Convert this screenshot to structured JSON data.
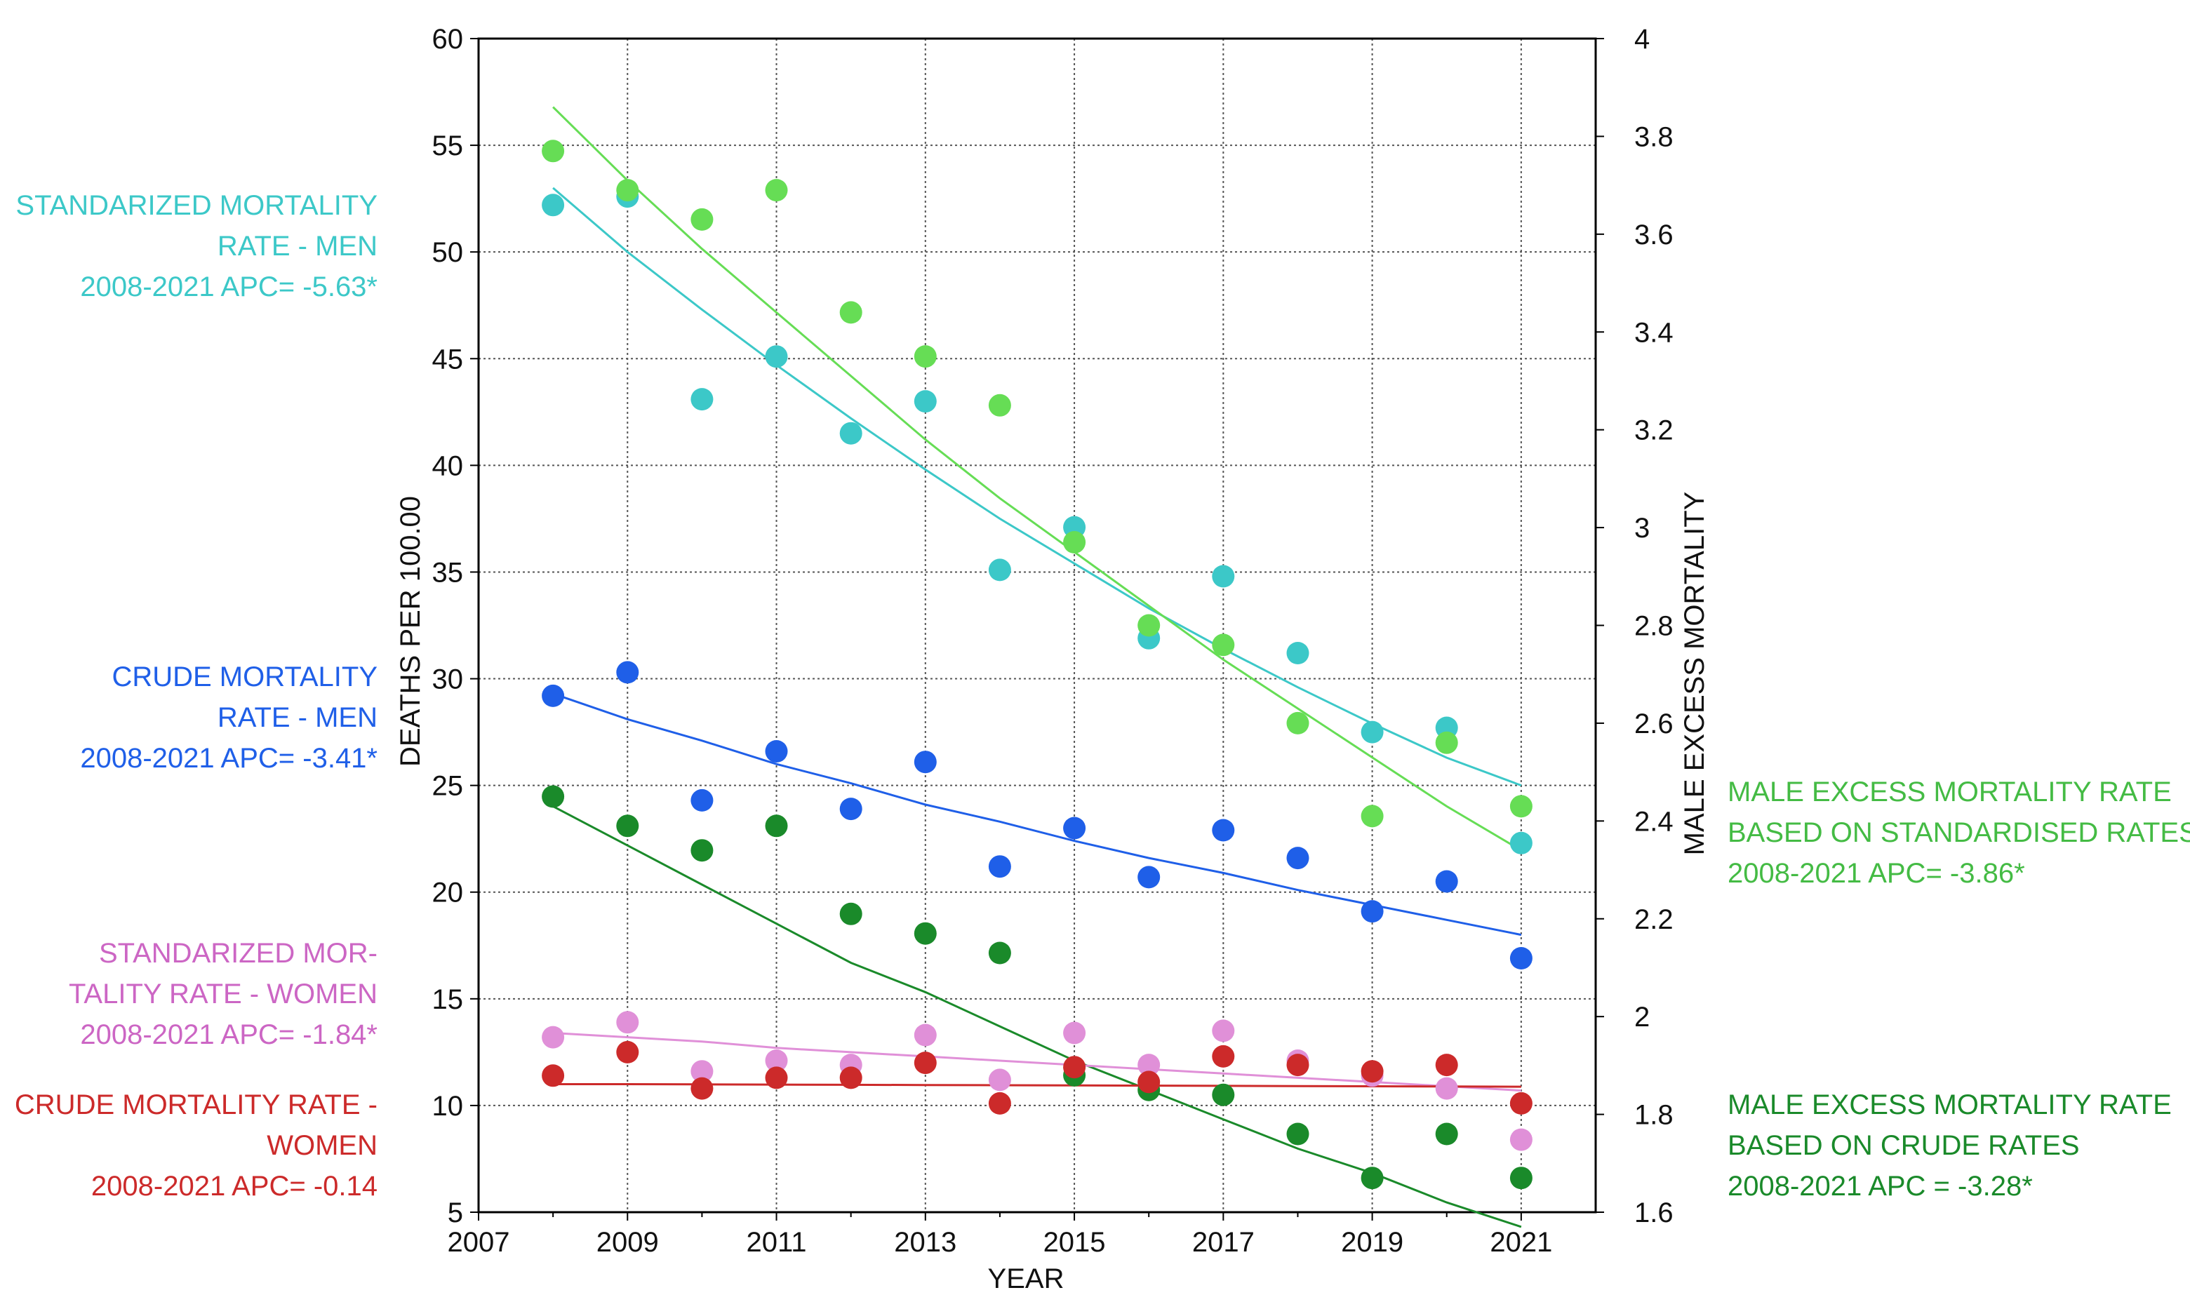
{
  "chart_data": {
    "type": "scatter",
    "title": "",
    "xlabel": "YEAR",
    "ylabel": "DEATHS PER 100.00",
    "y2label": "MALE EXCESS MORTALITY",
    "xlim": [
      2007,
      2022
    ],
    "ylim": [
      5,
      60
    ],
    "y2lim": [
      1.6,
      4
    ],
    "grid": true,
    "x_ticks": [
      "2007",
      "2009",
      "2011",
      "2013",
      "2015",
      "2017",
      "2019",
      "2021"
    ],
    "y_ticks": [
      "5",
      "10",
      "15",
      "20",
      "25",
      "30",
      "35",
      "40",
      "45",
      "50",
      "55",
      "60"
    ],
    "y2_ticks": [
      "1.6",
      "1.8",
      "2",
      "2.2",
      "2.4",
      "2.6",
      "2.8",
      "3",
      "3.2",
      "3.4",
      "3.6",
      "3.8",
      "4"
    ],
    "x": [
      2008,
      2009,
      2010,
      2011,
      2012,
      2013,
      2014,
      2015,
      2016,
      2017,
      2018,
      2019,
      2020,
      2021
    ],
    "series": [
      {
        "name": "Standardized mortality rate - men",
        "axis": "left",
        "color": "#3cc8c8",
        "values": [
          52.2,
          52.6,
          43.1,
          45.1,
          41.5,
          43.0,
          35.1,
          37.1,
          31.9,
          34.8,
          31.2,
          27.5,
          27.7,
          22.3
        ],
        "trend": [
          53.0,
          50.0,
          47.3,
          44.7,
          42.2,
          39.8,
          37.5,
          35.4,
          33.3,
          31.4,
          29.6,
          27.9,
          26.3,
          25.0
        ]
      },
      {
        "name": "Male excess mortality rate based on standardised rates",
        "axis": "right",
        "color": "#66dd55",
        "values": [
          3.77,
          3.69,
          3.63,
          3.69,
          3.44,
          3.35,
          3.25,
          2.97,
          2.8,
          2.76,
          2.6,
          2.41,
          2.56,
          2.43
        ],
        "trend": [
          3.86,
          3.71,
          3.57,
          3.44,
          3.31,
          3.18,
          3.06,
          2.95,
          2.84,
          2.73,
          2.63,
          2.53,
          2.43,
          2.34
        ]
      },
      {
        "name": "Crude mortality rate - men",
        "axis": "left",
        "color": "#1f5fe8",
        "values": [
          29.2,
          30.3,
          24.3,
          26.6,
          23.9,
          26.1,
          21.2,
          23.0,
          20.7,
          22.9,
          21.6,
          19.1,
          20.5,
          16.9
        ],
        "trend": [
          29.3,
          28.1,
          27.1,
          26.0,
          25.1,
          24.1,
          23.3,
          22.4,
          21.6,
          20.9,
          20.1,
          19.4,
          18.7,
          18.0
        ]
      },
      {
        "name": "Male excess mortality rate based on crude rates",
        "axis": "right",
        "color": "#1a8a2a",
        "values": [
          2.45,
          2.39,
          2.34,
          2.39,
          2.21,
          2.17,
          2.13,
          1.88,
          1.85,
          1.84,
          1.76,
          1.67,
          1.76,
          1.67
        ],
        "trend": [
          2.43,
          2.35,
          2.27,
          2.19,
          2.11,
          2.05,
          1.98,
          1.91,
          1.85,
          1.79,
          1.73,
          1.68,
          1.62,
          1.57
        ]
      },
      {
        "name": "Standardized mortality rate - women",
        "axis": "left",
        "color": "#e090d8",
        "values": [
          13.2,
          13.9,
          11.6,
          12.1,
          11.9,
          13.3,
          11.2,
          13.4,
          11.9,
          13.5,
          12.1,
          11.4,
          10.8,
          8.4
        ],
        "trend": [
          13.4,
          13.2,
          13.0,
          12.7,
          12.5,
          12.3,
          12.1,
          11.9,
          11.7,
          11.5,
          11.3,
          11.1,
          10.9,
          10.7
        ]
      },
      {
        "name": "Crude mortality rate - women",
        "axis": "left",
        "color": "#cc2a2a",
        "values": [
          11.4,
          12.5,
          10.8,
          11.3,
          11.3,
          12.0,
          10.1,
          11.8,
          11.1,
          12.3,
          11.9,
          11.6,
          11.9,
          10.1
        ],
        "trend": [
          11.0,
          11.0,
          10.99,
          10.98,
          10.97,
          10.96,
          10.95,
          10.94,
          10.93,
          10.92,
          10.91,
          10.9,
          10.89,
          10.88
        ]
      }
    ],
    "annotations": [
      {
        "name": "std-men",
        "color": "#3cc8c8",
        "side": "left",
        "lines": [
          "STANDARIZED MORTALITY",
          "RATE - MEN",
          "2008-2021 APC= -5.63*"
        ]
      },
      {
        "name": "crude-men",
        "color": "#1f5fe8",
        "side": "left",
        "lines": [
          "CRUDE  MORTALITY",
          "RATE - MEN",
          "2008-2021 APC= -3.41*"
        ]
      },
      {
        "name": "std-women",
        "color": "#cc66c4",
        "side": "left",
        "lines": [
          "STANDARIZED  MOR-",
          "TALITY RATE - WOMEN",
          "2008-2021 APC= -1.84*"
        ]
      },
      {
        "name": "crude-women",
        "color": "#cc2a2a",
        "side": "left",
        "lines": [
          "CRUDE MORTALITY RATE -",
          "WOMEN",
          "2008-2021 APC= -0.14"
        ]
      },
      {
        "name": "excess-std",
        "color": "#44bb44",
        "side": "right",
        "lines": [
          "MALE EXCESS MORTALITY RATE",
          "BASED ON  STANDARDISED RATES",
          "2008-2021 APC= -3.86*"
        ]
      },
      {
        "name": "excess-crude",
        "color": "#1a8a2a",
        "side": "right",
        "lines": [
          "MALE EXCESS MORTALITY RATE",
          "BASED ON CRUDE RATES",
          "2008-2021 APC = -3.28*"
        ]
      }
    ]
  }
}
